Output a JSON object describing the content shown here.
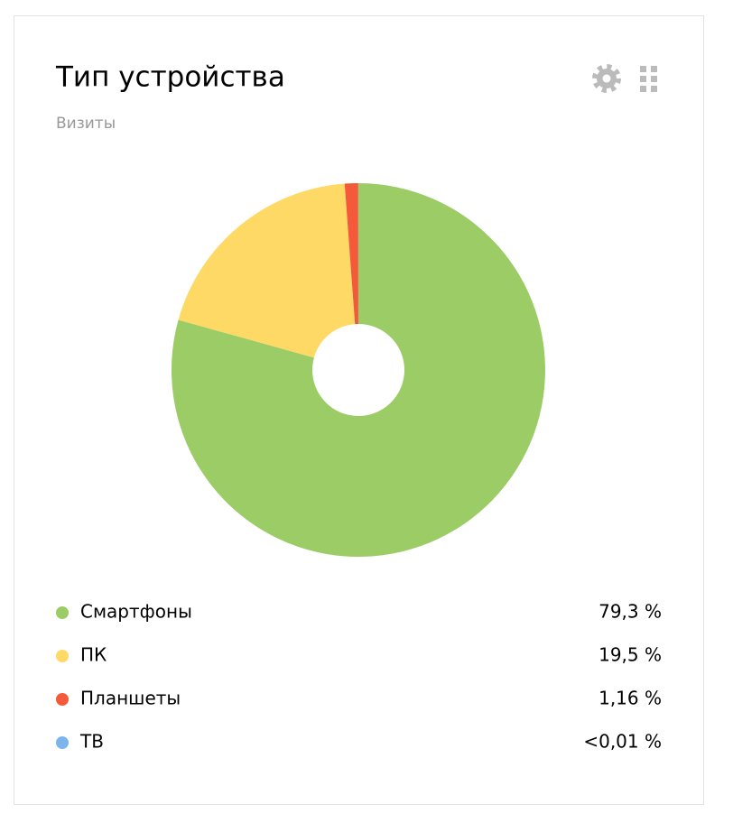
{
  "chart_data": {
    "type": "pie",
    "title": "Тип устройства",
    "subtitle": "Визиты",
    "categories": [
      "Смартфоны",
      "ПК",
      "Планшеты",
      "ТВ"
    ],
    "values": [
      79.3,
      19.5,
      1.16,
      0.01
    ],
    "value_labels": [
      "79,3 %",
      "19,5 %",
      "1,16 %",
      "<0,01 %"
    ],
    "colors": [
      "#9bcc65",
      "#ffd966",
      "#f4593a",
      "#7cb5ec"
    ]
  }
}
